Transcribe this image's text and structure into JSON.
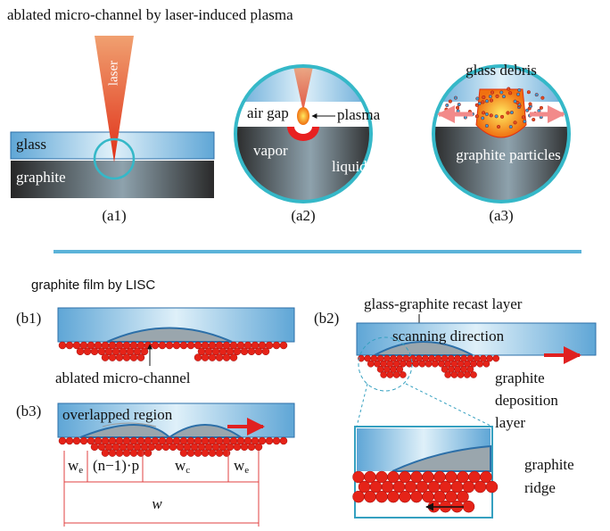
{
  "part_a": {
    "title": "ablated micro-channel by laser-induced plasma",
    "a1": {
      "label": "(a1)",
      "laser": "laser",
      "glass": "glass",
      "graphite": "graphite"
    },
    "a2": {
      "label": "(a2)",
      "air_gap": "air gap",
      "plasma": "plasma",
      "vapor": "vapor",
      "liquid": "liquid"
    },
    "a3": {
      "label": "(a3)",
      "glass_debris": "glass debris",
      "graphite_particles": "graphite particles"
    }
  },
  "part_b": {
    "title": "graphite film by LISC",
    "b1": {
      "label": "(b1)",
      "annotation": "ablated micro-channel"
    },
    "b2": {
      "label": "(b2)",
      "recast_layer": "glass-graphite recast layer",
      "scanning_direction": "scanning direction",
      "deposition_layer": [
        "graphite",
        "deposition",
        "layer"
      ],
      "ridge": [
        "graphite",
        "ridge"
      ]
    },
    "b3": {
      "label": "(b3)",
      "overlapped_region": "overlapped region",
      "we_left": {
        "main": "w",
        "sub": "e"
      },
      "np": "(n−1)·p",
      "wc": {
        "main": "w",
        "sub": "c"
      },
      "we_right": {
        "main": "w",
        "sub": "e"
      },
      "w": "w"
    }
  }
}
